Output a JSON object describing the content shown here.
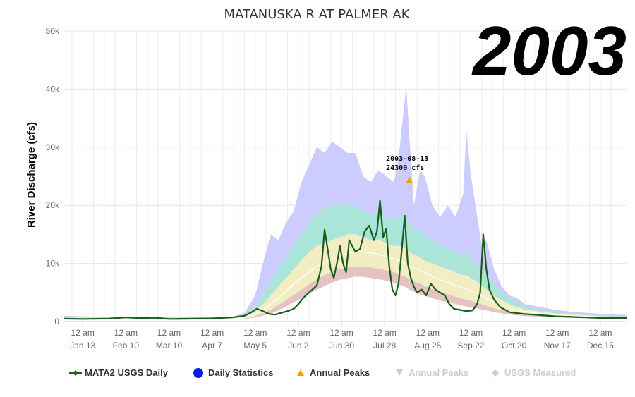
{
  "title": "MATANUSKA R AT PALMER AK",
  "year_label": "2003",
  "chart_data": {
    "type": "area",
    "title": "MATANUSKA R AT PALMER AK",
    "ylabel": "River Discharge (cfs)",
    "xlabel": "",
    "ylim": [
      0,
      50000
    ],
    "yticks": [
      0,
      10000,
      20000,
      30000,
      40000,
      50000
    ],
    "ytick_labels": [
      "0",
      "10k",
      "20k",
      "30k",
      "40k",
      "50k"
    ],
    "xlim": [
      1,
      366
    ],
    "xticks": [
      {
        "doy": 13,
        "top": "12 am",
        "bottom": "Jan 13"
      },
      {
        "doy": 41,
        "top": "12 am",
        "bottom": "Feb 10"
      },
      {
        "doy": 69,
        "top": "12 am",
        "bottom": "Mar 10"
      },
      {
        "doy": 97,
        "top": "12 am",
        "bottom": "Apr 7"
      },
      {
        "doy": 125,
        "top": "12 am",
        "bottom": "May 5"
      },
      {
        "doy": 153,
        "top": "12 am",
        "bottom": "Jun 2"
      },
      {
        "doy": 181,
        "top": "12 am",
        "bottom": "Jun 30"
      },
      {
        "doy": 209,
        "top": "12 am",
        "bottom": "Jul 28"
      },
      {
        "doy": 237,
        "top": "12 am",
        "bottom": "Aug 25"
      },
      {
        "doy": 265,
        "top": "12 am",
        "bottom": "Sep 22"
      },
      {
        "doy": 293,
        "top": "12 am",
        "bottom": "Oct 20"
      },
      {
        "doy": 321,
        "top": "12 am",
        "bottom": "Nov 17"
      },
      {
        "doy": 349,
        "top": "12 am",
        "bottom": "Dec 15"
      }
    ],
    "grid": true,
    "legend_position": "bottom",
    "x_units": "day of year",
    "daily_statistics": {
      "x": [
        1,
        13,
        41,
        69,
        97,
        110,
        118,
        125,
        130,
        135,
        140,
        145,
        150,
        155,
        160,
        165,
        170,
        175,
        180,
        185,
        190,
        195,
        200,
        205,
        210,
        215,
        218,
        220,
        223,
        225,
        228,
        232,
        235,
        240,
        245,
        250,
        255,
        260,
        262,
        265,
        268,
        272,
        275,
        280,
        285,
        290,
        295,
        300,
        310,
        320,
        330,
        340,
        350,
        366
      ],
      "max": [
        1000,
        900,
        800,
        700,
        700,
        800,
        1500,
        4500,
        10000,
        15000,
        14000,
        17000,
        19000,
        24000,
        27000,
        30000,
        29000,
        31000,
        30000,
        29000,
        29000,
        25000,
        24000,
        26000,
        25000,
        24000,
        28000,
        33000,
        40500,
        32000,
        20000,
        26000,
        25000,
        20000,
        18000,
        20000,
        18000,
        22000,
        33000,
        25000,
        20000,
        13000,
        14000,
        9000,
        6000,
        4500,
        4000,
        3000,
        2500,
        2000,
        1700,
        1500,
        1300,
        1100
      ],
      "p90": [
        800,
        700,
        650,
        600,
        600,
        650,
        1000,
        2500,
        4500,
        7000,
        9000,
        11000,
        13000,
        15000,
        17000,
        18500,
        19500,
        20000,
        20000,
        20000,
        20000,
        19000,
        18500,
        18500,
        18000,
        17500,
        18000,
        18500,
        18000,
        17000,
        16000,
        15500,
        15000,
        14000,
        13000,
        12500,
        12000,
        11500,
        12000,
        11000,
        10000,
        9000,
        8000,
        6500,
        5000,
        4000,
        3200,
        2600,
        2000,
        1600,
        1400,
        1200,
        1000,
        900
      ],
      "p75": [
        700,
        650,
        600,
        550,
        550,
        600,
        800,
        1800,
        3000,
        4500,
        6000,
        7500,
        9000,
        10500,
        12000,
        13000,
        13500,
        14000,
        14500,
        15000,
        15000,
        14500,
        14000,
        14000,
        13500,
        13000,
        13000,
        13000,
        12500,
        12000,
        11500,
        11000,
        10500,
        10000,
        9500,
        9000,
        8500,
        8000,
        8000,
        7500,
        7000,
        6200,
        5500,
        4500,
        3700,
        3000,
        2500,
        2100,
        1700,
        1400,
        1200,
        1050,
        900,
        800
      ],
      "p50": [
        600,
        550,
        500,
        480,
        480,
        520,
        650,
        1300,
        2000,
        3000,
        4000,
        5200,
        6500,
        7500,
        8500,
        9500,
        10200,
        10800,
        11300,
        11700,
        12000,
        12000,
        11800,
        11600,
        11200,
        10800,
        10500,
        10300,
        10000,
        9600,
        9200,
        8800,
        8400,
        7800,
        7200,
        6700,
        6200,
        5800,
        5600,
        5300,
        4900,
        4400,
        4000,
        3300,
        2800,
        2300,
        1900,
        1700,
        1400,
        1150,
        1000,
        900,
        780,
        700
      ],
      "p25": [
        500,
        470,
        430,
        400,
        400,
        430,
        520,
        950,
        1400,
        2000,
        2800,
        3700,
        4600,
        5500,
        6400,
        7300,
        8000,
        8600,
        9000,
        9300,
        9500,
        9500,
        9300,
        9100,
        8800,
        8500,
        8200,
        8000,
        7700,
        7300,
        6900,
        6500,
        6100,
        5600,
        5100,
        4700,
        4300,
        3900,
        3800,
        3600,
        3300,
        3000,
        2700,
        2300,
        1900,
        1600,
        1400,
        1250,
        1050,
        900,
        800,
        700,
        620,
        560
      ],
      "p10": [
        420,
        400,
        370,
        340,
        340,
        360,
        430,
        700,
        1000,
        1400,
        1900,
        2600,
        3300,
        4000,
        4800,
        5500,
        6100,
        6700,
        7200,
        7500,
        7700,
        7700,
        7500,
        7300,
        7000,
        6700,
        6400,
        6200,
        5900,
        5500,
        5100,
        4700,
        4400,
        4000,
        3600,
        3300,
        3000,
        2700,
        2600,
        2500,
        2300,
        2100,
        1900,
        1600,
        1400,
        1200,
        1050,
        950,
        820,
        720,
        640,
        580,
        520,
        480
      ],
      "min": [
        350,
        330,
        300,
        280,
        280,
        300,
        350,
        500,
        700,
        900,
        1100,
        1300,
        1600,
        2000,
        2500,
        3000,
        3600,
        4200,
        5000,
        6000,
        6500,
        7000,
        6800,
        6200,
        5500,
        5000,
        4800,
        4600,
        4200,
        4000,
        3600,
        3200,
        2900,
        2600,
        2300,
        2000,
        1800,
        1600,
        1500,
        1400,
        1300,
        1200,
        1100,
        950,
        850,
        750,
        680,
        620,
        550,
        500,
        450,
        420,
        380,
        350
      ]
    },
    "series": [
      {
        "name": "MATA2 USGS Daily",
        "color": "#1b5e1b",
        "x": [
          1,
          13,
          30,
          41,
          50,
          60,
          69,
          80,
          97,
          110,
          118,
          122,
          126,
          130,
          134,
          138,
          142,
          146,
          150,
          153,
          156,
          159,
          162,
          165,
          168,
          170,
          172,
          174,
          176,
          178,
          180,
          182,
          184,
          186,
          188,
          190,
          193,
          196,
          199,
          202,
          204,
          206,
          208,
          210,
          212,
          214,
          216,
          218,
          220,
          222,
          224,
          226,
          228,
          230,
          233,
          236,
          239,
          242,
          245,
          248,
          251,
          254,
          258,
          262,
          266,
          269,
          271,
          273,
          275,
          277,
          280,
          284,
          290,
          300,
          310,
          320,
          330,
          340,
          350,
          366
        ],
        "values": [
          500,
          450,
          500,
          700,
          600,
          650,
          450,
          480,
          550,
          700,
          1000,
          1500,
          2200,
          1800,
          1300,
          1200,
          1500,
          1800,
          2200,
          3000,
          4000,
          4800,
          5500,
          6200,
          9500,
          15800,
          12500,
          9000,
          7500,
          10000,
          13000,
          10000,
          8500,
          14000,
          13000,
          12000,
          12500,
          15500,
          16500,
          14000,
          15500,
          20800,
          14500,
          16000,
          9500,
          5500,
          4500,
          6500,
          12000,
          18200,
          10000,
          7500,
          6000,
          5000,
          5500,
          4500,
          6500,
          5500,
          5000,
          4500,
          3000,
          2200,
          2000,
          1800,
          1900,
          3000,
          5000,
          15000,
          9000,
          5500,
          3800,
          2500,
          1600,
          1300,
          1100,
          900,
          800,
          700,
          600,
          600
        ]
      },
      {
        "name": "Daily Statistics",
        "color": "#0000ee"
      },
      {
        "name": "Annual Peaks",
        "color": "#f0a000",
        "x": [
          225
        ],
        "values": [
          24300
        ]
      }
    ],
    "annotations": [
      {
        "date": "2003-08-13",
        "value_label": "24300 cfs",
        "x": 225,
        "y": 24300
      }
    ],
    "legend": [
      {
        "label": "MATA2 USGS Daily",
        "symbol": "line-diamond",
        "color": "#1b5e1b",
        "enabled": true
      },
      {
        "label": "Daily Statistics",
        "symbol": "circle",
        "color": "#0a1ce6",
        "enabled": true
      },
      {
        "label": "Annual Peaks",
        "symbol": "triangle-up",
        "color": "#f0a000",
        "enabled": true
      },
      {
        "label": "Annual Peaks",
        "symbol": "triangle-down",
        "color": "#cccccc",
        "enabled": false
      },
      {
        "label": "USGS Measured",
        "symbol": "diamond",
        "color": "#cccccc",
        "enabled": false
      }
    ],
    "band_colors": {
      "max_p90": "#c9c9ff",
      "p90_p75": "#a6e3d6",
      "p75_p50": "#f2ecc0",
      "p50_p25": "#f2ecc0",
      "p25_p10": "#e3c0c0",
      "p10_min": "#ffffff",
      "median_line": "#ffffff"
    }
  }
}
